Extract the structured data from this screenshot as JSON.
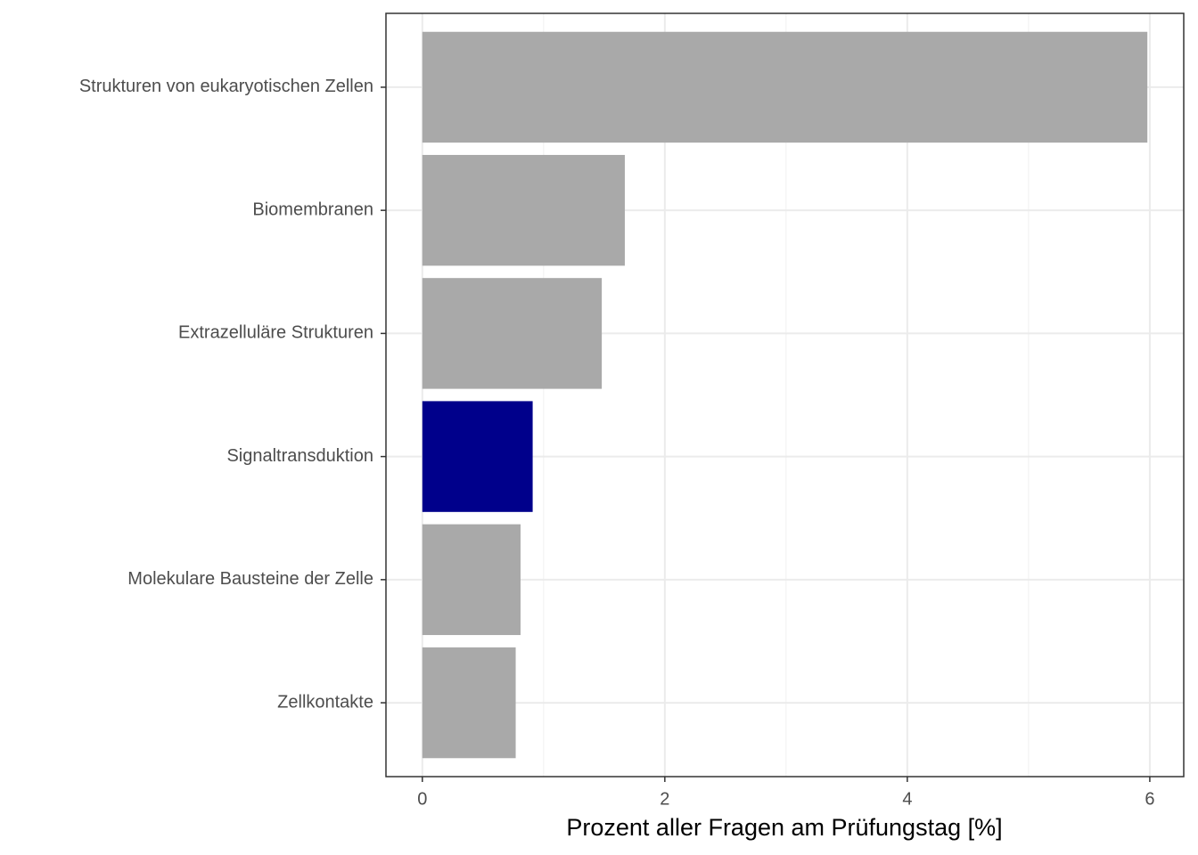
{
  "chart_data": {
    "type": "barh",
    "xlabel": "Prozent aller Fragen am Prüfungstag [%]",
    "categories": [
      "Strukturen von eukaryotischen Zellen",
      "Biomembranen",
      "Extrazelluläre Strukturen",
      "Signaltransduktion",
      "Molekulare Bausteine der Zelle",
      "Zellkontakte"
    ],
    "values": [
      5.98,
      1.67,
      1.48,
      0.91,
      0.81,
      0.77
    ],
    "colors": [
      "#a9a9a9",
      "#a9a9a9",
      "#a9a9a9",
      "#00008b",
      "#a9a9a9",
      "#a9a9a9"
    ],
    "xlim": [
      -0.3,
      6.28
    ],
    "xticks": [
      0,
      2,
      4,
      6
    ],
    "minor_xticks": [
      1,
      3,
      5
    ],
    "grid": true
  }
}
